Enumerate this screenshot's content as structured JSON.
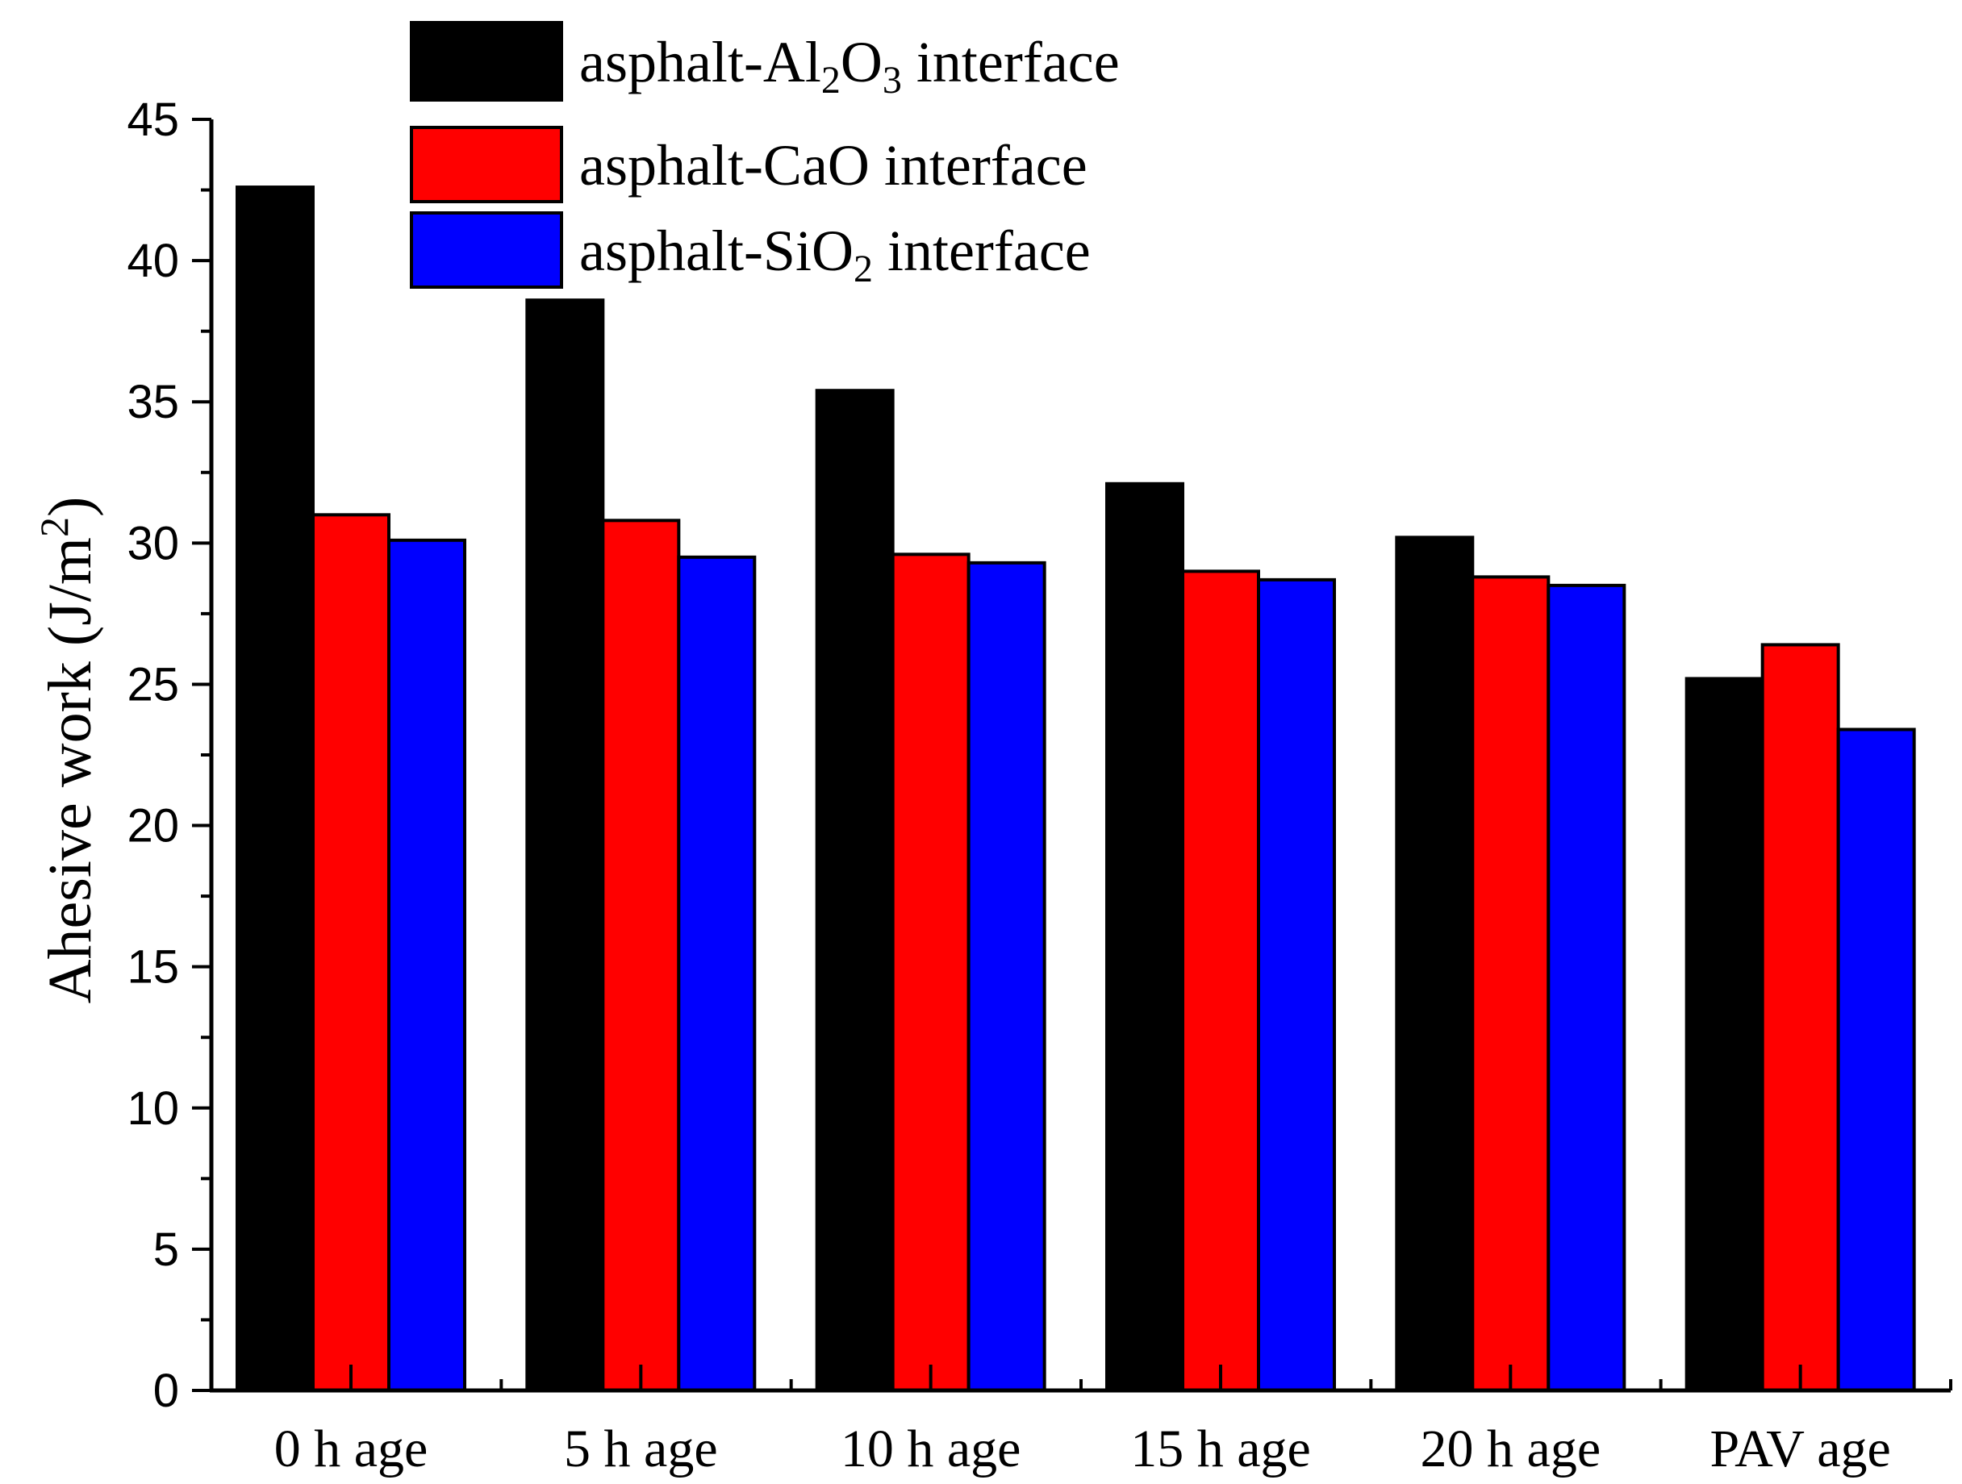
{
  "chart_data": {
    "type": "bar",
    "title": "",
    "xlabel": "",
    "ylabel": "Ahesive work (J/m²)",
    "ylabel_parts": {
      "base": "Ahesive work (J/m",
      "sup": "2",
      "tail": ")"
    },
    "ylim": [
      0,
      45
    ],
    "yticks": [
      0,
      5,
      10,
      15,
      20,
      25,
      30,
      35,
      40,
      45
    ],
    "categories": [
      "0 h age",
      "5 h age",
      "10 h age",
      "15 h age",
      "20 h age",
      "PAV age"
    ],
    "series": [
      {
        "name": "asphalt-Al2O3 interface",
        "label_parts": [
          {
            "t": "asphalt-Al"
          },
          {
            "t": "2",
            "sub": true
          },
          {
            "t": "O"
          },
          {
            "t": "3",
            "sub": true
          },
          {
            "t": " interface"
          }
        ],
        "color": "#000000",
        "values": [
          42.6,
          38.6,
          35.4,
          32.1,
          30.2,
          25.2
        ]
      },
      {
        "name": "asphalt-CaO interface",
        "label_parts": [
          {
            "t": "asphalt-CaO interface"
          }
        ],
        "color": "#ff0000",
        "values": [
          31.0,
          30.8,
          29.6,
          29.0,
          28.8,
          26.4
        ]
      },
      {
        "name": "asphalt-SiO2 interface",
        "label_parts": [
          {
            "t": "asphalt-SiO"
          },
          {
            "t": "2",
            "sub": true
          },
          {
            "t": " interface"
          }
        ],
        "color": "#0000ff",
        "values": [
          30.1,
          29.5,
          29.3,
          28.7,
          28.5,
          23.4
        ]
      }
    ],
    "legend_position": "top-center",
    "grid": false
  }
}
